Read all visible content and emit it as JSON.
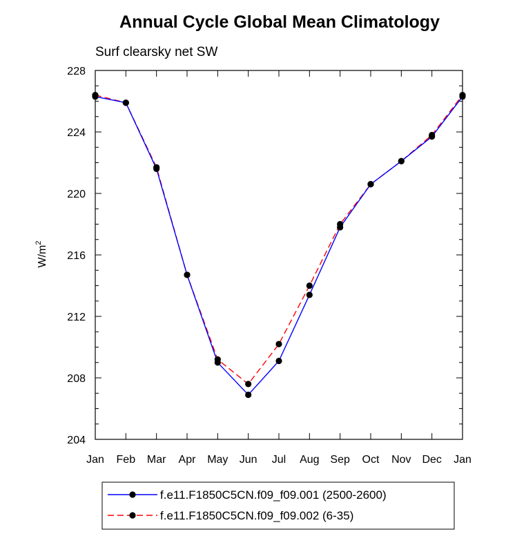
{
  "chart_data": {
    "type": "line",
    "title": "Annual Cycle Global Mean Climatology",
    "subtitle": "Surf clearsky net SW",
    "ylabel": "W/m",
    "ylabel_sup": "2",
    "xlabel": "",
    "categories": [
      "Jan",
      "Feb",
      "Mar",
      "Apr",
      "May",
      "Jun",
      "Jul",
      "Aug",
      "Sep",
      "Oct",
      "Nov",
      "Dec",
      "Jan"
    ],
    "ylim": [
      204,
      228
    ],
    "yticks": [
      "204",
      "208",
      "212",
      "216",
      "220",
      "224",
      "228"
    ],
    "grid": false,
    "legend_position": "bottom",
    "series": [
      {
        "name": "f.e11.F1850C5CN.f09_f09.001 (2500-2600)",
        "color": "#0000ff",
        "line_style": "solid",
        "marker": "filled-circle",
        "values": [
          226.3,
          225.9,
          221.6,
          214.7,
          209.0,
          206.9,
          209.1,
          213.4,
          217.8,
          220.6,
          222.1,
          223.7,
          226.3
        ]
      },
      {
        "name": "f.e11.F1850C5CN.f09_f09.002 (6-35)",
        "color": "#ff0000",
        "line_style": "dashed",
        "marker": "filled-circle",
        "values": [
          226.4,
          225.9,
          221.7,
          214.7,
          209.2,
          207.6,
          210.2,
          214.0,
          218.0,
          220.6,
          222.1,
          223.8,
          226.4
        ]
      }
    ]
  }
}
